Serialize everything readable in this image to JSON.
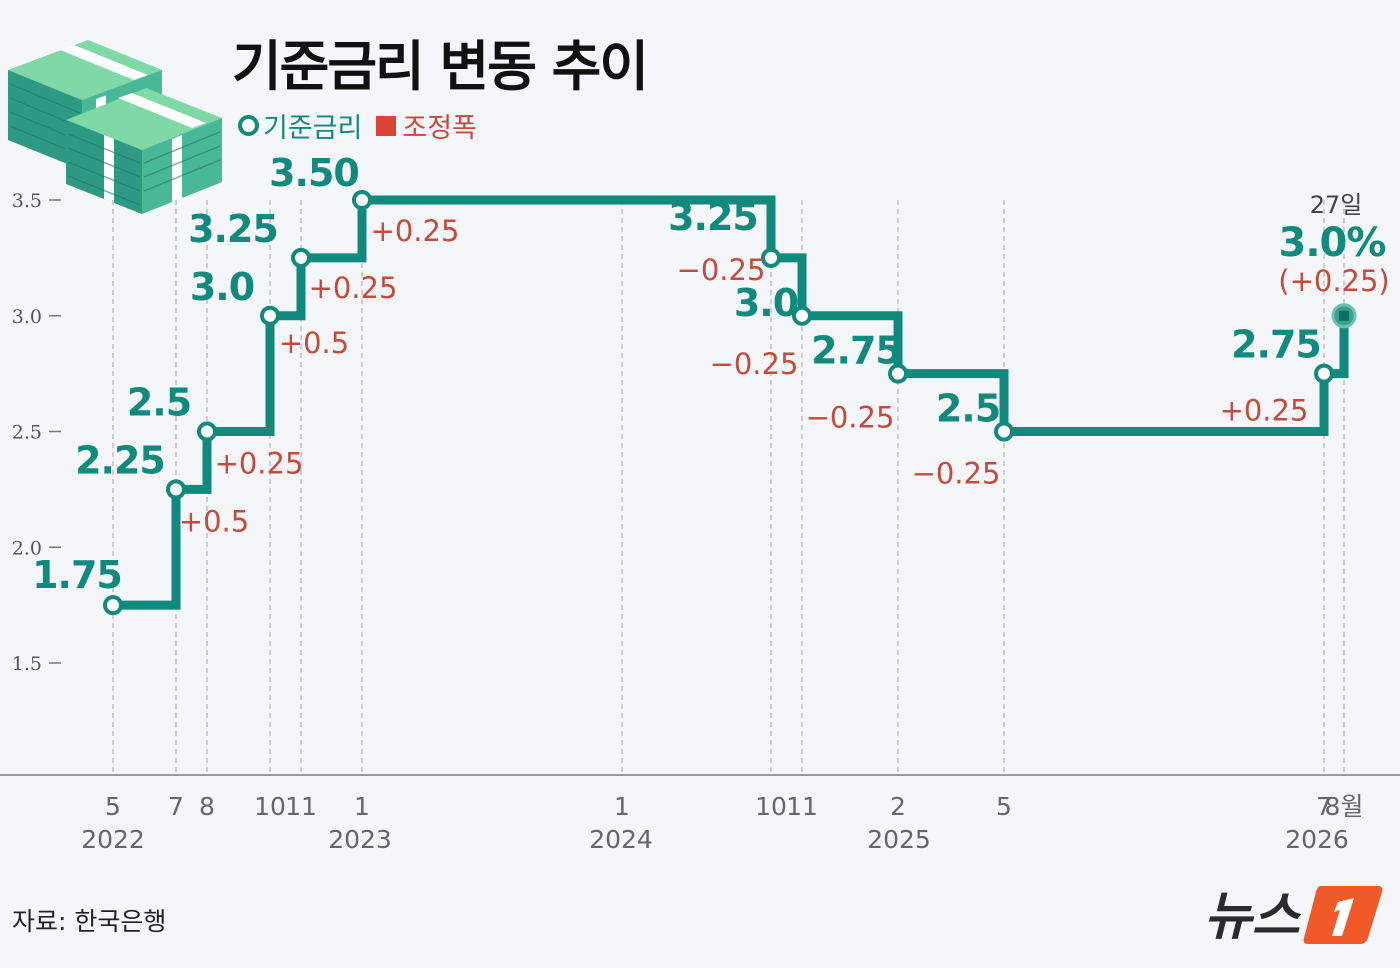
{
  "title": "기준금리 변동 추이",
  "legend": {
    "rate": "기준금리",
    "adjustment": "조정폭"
  },
  "source": "자료: 한국은행",
  "logo_text": "뉴스",
  "colors": {
    "line": "#0f8a7d",
    "adjust": "#c64a3a",
    "axis": "#999999",
    "background": "#f5f6fa",
    "logo_accent": "#f05a28"
  },
  "chart_data": {
    "type": "line",
    "step": true,
    "title": "기준금리 변동 추이",
    "ylim": [
      1.5,
      3.5
    ],
    "y_ticks": [
      {
        "v": 1.5,
        "label": "1.5"
      },
      {
        "v": 2.0,
        "label": "2.0"
      },
      {
        "v": 2.5,
        "label": "2.5"
      },
      {
        "v": 3.0,
        "label": "3.0"
      },
      {
        "v": 3.5,
        "label": "3.5"
      }
    ],
    "series": [
      {
        "name": "기준금리",
        "points": [
          {
            "date": "2022-05",
            "value": 1.75,
            "label": "1.75",
            "change": ""
          },
          {
            "date": "2022-07",
            "value": 2.25,
            "label": "2.25",
            "change": "+0.5"
          },
          {
            "date": "2022-08",
            "value": 2.5,
            "label": "2.5",
            "change": "+0.25"
          },
          {
            "date": "2022-10",
            "value": 3.0,
            "label": "3.0",
            "change": "+0.5"
          },
          {
            "date": "2022-11",
            "value": 3.25,
            "label": "3.25",
            "change": "+0.25"
          },
          {
            "date": "2023-01",
            "value": 3.5,
            "label": "3.50",
            "change": "+0.25"
          },
          {
            "date": "2024-10",
            "value": 3.25,
            "label": "3.25",
            "change": "−0.25"
          },
          {
            "date": "2024-11",
            "value": 3.0,
            "label": "3.0",
            "change": "−0.25"
          },
          {
            "date": "2025-02",
            "value": 2.75,
            "label": "2.75",
            "change": "−0.25"
          },
          {
            "date": "2025-05",
            "value": 2.5,
            "label": "2.5",
            "change": "−0.25"
          },
          {
            "date": "2026-07",
            "value": 2.75,
            "label": "2.75",
            "change": "+0.25"
          },
          {
            "date": "2026-08-27",
            "value": 3.0,
            "label": "3.0%",
            "change": "(+0.25)",
            "note": "27일"
          }
        ]
      }
    ],
    "x_ticks": [
      {
        "date": "2022-05",
        "month": "5",
        "year": "2022"
      },
      {
        "date": "2022-07",
        "month": "7",
        "year": ""
      },
      {
        "date": "2022-08",
        "month": "8",
        "year": ""
      },
      {
        "date": "2022-10",
        "month": "10",
        "year": ""
      },
      {
        "date": "2022-11",
        "month": "11",
        "year": ""
      },
      {
        "date": "2023-01",
        "month": "1",
        "year": "2023"
      },
      {
        "date": "2024-01",
        "month": "1",
        "year": "2024"
      },
      {
        "date": "2024-10",
        "month": "10",
        "year": ""
      },
      {
        "date": "2024-11",
        "month": "11",
        "year": ""
      },
      {
        "date": "2025-02",
        "month": "2",
        "year": "2025"
      },
      {
        "date": "2025-05",
        "month": "5",
        "year": ""
      },
      {
        "date": "2026-07",
        "month": "7",
        "year": "2026"
      },
      {
        "date": "2026-08",
        "month": "8월",
        "year": ""
      }
    ]
  }
}
